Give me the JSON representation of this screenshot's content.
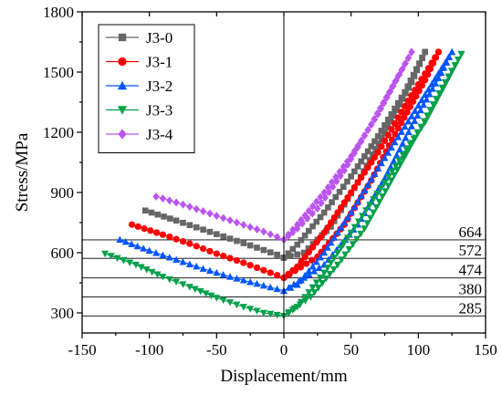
{
  "chart_data": {
    "type": "line",
    "title": "",
    "xlabel": "Displacement/mm",
    "ylabel": "Stress/MPa",
    "xlim": [
      -150,
      150
    ],
    "ylim": [
      200,
      1800
    ],
    "xticks": [
      -150,
      -100,
      -50,
      0,
      50,
      100,
      150
    ],
    "yticks": [
      300,
      600,
      900,
      1200,
      1500,
      1800
    ],
    "legend_position": "top-left",
    "reference_lines": [
      {
        "value": 664,
        "label": "664"
      },
      {
        "value": 572,
        "label": "572"
      },
      {
        "value": 474,
        "label": "474"
      },
      {
        "value": 380,
        "label": "380"
      },
      {
        "value": 285,
        "label": "285"
      }
    ],
    "series": [
      {
        "name": "J3-0",
        "color": "#666666",
        "marker": "square",
        "loading": [
          [
            -103,
            810
          ],
          [
            -80,
            760
          ],
          [
            -60,
            715
          ],
          [
            -40,
            670
          ],
          [
            -20,
            625
          ],
          [
            -5,
            590
          ],
          [
            0,
            575
          ],
          [
            10,
            640
          ],
          [
            30,
            800
          ],
          [
            50,
            980
          ],
          [
            70,
            1180
          ],
          [
            90,
            1400
          ],
          [
            105,
            1600
          ]
        ],
        "unloading": [
          [
            105,
            1600
          ],
          [
            95,
            1450
          ],
          [
            75,
            1200
          ],
          [
            55,
            950
          ],
          [
            35,
            730
          ],
          [
            15,
            600
          ],
          [
            0,
            575
          ]
        ]
      },
      {
        "name": "J3-1",
        "color": "#ff0000",
        "marker": "circle",
        "loading": [
          [
            -113,
            740
          ],
          [
            -90,
            690
          ],
          [
            -70,
            645
          ],
          [
            -50,
            595
          ],
          [
            -30,
            550
          ],
          [
            -10,
            500
          ],
          [
            0,
            475
          ],
          [
            10,
            530
          ],
          [
            30,
            700
          ],
          [
            50,
            900
          ],
          [
            70,
            1100
          ],
          [
            90,
            1330
          ],
          [
            115,
            1600
          ]
        ],
        "unloading": [
          [
            115,
            1600
          ],
          [
            105,
            1460
          ],
          [
            85,
            1220
          ],
          [
            65,
            960
          ],
          [
            45,
            740
          ],
          [
            25,
            580
          ],
          [
            0,
            475
          ]
        ]
      },
      {
        "name": "J3-2",
        "color": "#0055ff",
        "marker": "triangle-up",
        "loading": [
          [
            -122,
            665
          ],
          [
            -100,
            610
          ],
          [
            -80,
            565
          ],
          [
            -60,
            520
          ],
          [
            -40,
            480
          ],
          [
            -20,
            445
          ],
          [
            0,
            410
          ],
          [
            10,
            440
          ],
          [
            30,
            600
          ],
          [
            50,
            800
          ],
          [
            70,
            1020
          ],
          [
            95,
            1280
          ],
          [
            125,
            1600
          ]
        ],
        "unloading": [
          [
            125,
            1600
          ],
          [
            115,
            1470
          ],
          [
            95,
            1230
          ],
          [
            75,
            970
          ],
          [
            55,
            740
          ],
          [
            30,
            540
          ],
          [
            0,
            410
          ]
        ]
      },
      {
        "name": "J3-3",
        "color": "#00a04a",
        "marker": "triangle-down",
        "loading": [
          [
            -133,
            595
          ],
          [
            -110,
            540
          ],
          [
            -90,
            480
          ],
          [
            -70,
            430
          ],
          [
            -50,
            375
          ],
          [
            -30,
            330
          ],
          [
            -15,
            300
          ],
          [
            0,
            285
          ],
          [
            10,
            330
          ],
          [
            30,
            500
          ],
          [
            50,
            700
          ],
          [
            75,
            950
          ],
          [
            105,
            1250
          ],
          [
            132,
            1590
          ]
        ],
        "unloading": [
          [
            132,
            1590
          ],
          [
            120,
            1450
          ],
          [
            100,
            1200
          ],
          [
            80,
            960
          ],
          [
            60,
            720
          ],
          [
            40,
            540
          ],
          [
            20,
            380
          ],
          [
            0,
            285
          ]
        ]
      },
      {
        "name": "J3-4",
        "color": "#bb55ee",
        "marker": "diamond",
        "loading": [
          [
            -95,
            880
          ],
          [
            -75,
            840
          ],
          [
            -55,
            795
          ],
          [
            -35,
            750
          ],
          [
            -15,
            705
          ],
          [
            0,
            665
          ],
          [
            10,
            740
          ],
          [
            30,
            900
          ],
          [
            50,
            1080
          ],
          [
            70,
            1290
          ],
          [
            95,
            1600
          ]
        ],
        "unloading": [
          [
            95,
            1600
          ],
          [
            85,
            1480
          ],
          [
            65,
            1240
          ],
          [
            45,
            1010
          ],
          [
            25,
            820
          ],
          [
            10,
            720
          ],
          [
            0,
            665
          ]
        ]
      }
    ]
  }
}
